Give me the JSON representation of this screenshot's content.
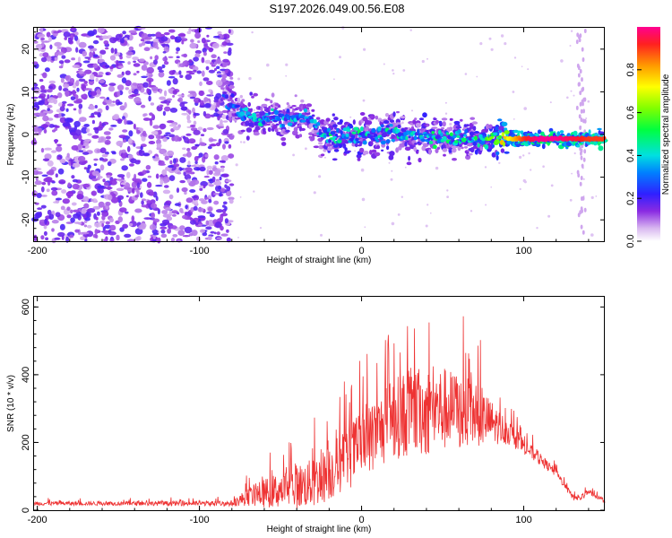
{
  "title": "S197.2026.049.00.56.E08",
  "chart_data": [
    {
      "type": "heatmap",
      "xlabel": "Height of straight line (km)",
      "ylabel": "Frequency (Hz)",
      "xlim": [
        -202,
        150
      ],
      "ylim": [
        -25,
        25
      ],
      "xticks": [
        -200,
        -100,
        0,
        100
      ],
      "yticks": [
        -20,
        -10,
        0,
        10,
        20
      ],
      "colorbar": {
        "label": "Normalized spectral amplitude",
        "range": [
          0,
          1
        ],
        "ticks": [
          "0.0",
          "0.2",
          "0.4",
          "0.6",
          "0.8"
        ],
        "tick_values": [
          0,
          0.2,
          0.4,
          0.6,
          0.8
        ]
      },
      "ridge": {
        "description": "Frequency of the dominant spectral ridge vs height (data units)",
        "x": [
          -85,
          -75,
          -65,
          -55,
          -45,
          -35,
          -30,
          -25,
          -20,
          -10,
          0,
          10,
          20,
          30,
          40,
          50,
          60,
          70,
          80,
          90,
          100,
          110,
          120,
          130,
          140,
          150
        ],
        "freq": [
          9,
          5,
          4,
          4,
          3.5,
          4,
          3,
          0,
          -1,
          0,
          0,
          0,
          0.5,
          -0.5,
          -1,
          -1,
          -1,
          -1,
          -1,
          -1,
          -1,
          -1,
          -1,
          -1,
          -1,
          -1
        ],
        "amplitude": [
          0.25,
          0.3,
          0.35,
          0.35,
          0.35,
          0.3,
          0.3,
          0.35,
          0.4,
          0.4,
          0.4,
          0.35,
          0.4,
          0.35,
          0.4,
          0.4,
          0.4,
          0.4,
          0.5,
          0.7,
          0.9,
          1.0,
          1.0,
          0.95,
          0.9,
          0.9
        ]
      },
      "noise_region": {
        "x_range": [
          -202,
          -80
        ],
        "freq_range": [
          -25,
          25
        ],
        "amplitude": 0.12
      },
      "spike_band": {
        "x": [
          133,
          138
        ],
        "freq_range": [
          -25,
          25
        ]
      }
    },
    {
      "type": "line",
      "xlabel": "Height of straight line (km)",
      "ylabel": "SNR (10 * v/v)",
      "xlim": [
        -202,
        150
      ],
      "ylim": [
        0,
        630
      ],
      "xticks": [
        -200,
        -100,
        0,
        100
      ],
      "yticks": [
        0,
        200,
        400,
        600
      ],
      "color": "#ee3333",
      "envelope": {
        "x": [
          -202,
          -150,
          -100,
          -80,
          -70,
          -60,
          -50,
          -40,
          -30,
          -20,
          -10,
          0,
          10,
          20,
          30,
          40,
          50,
          60,
          70,
          80,
          90,
          100,
          110,
          120,
          130,
          135,
          140,
          145,
          150
        ],
        "base": [
          20,
          20,
          20,
          20,
          40,
          50,
          60,
          70,
          80,
          110,
          150,
          190,
          230,
          270,
          290,
          290,
          300,
          290,
          280,
          260,
          230,
          190,
          150,
          110,
          40,
          35,
          55,
          40,
          25
        ],
        "amp": [
          10,
          10,
          12,
          14,
          45,
          70,
          90,
          110,
          120,
          140,
          160,
          170,
          180,
          200,
          220,
          220,
          210,
          190,
          160,
          110,
          60,
          40,
          30,
          20,
          15,
          15,
          12,
          10,
          10
        ]
      }
    }
  ]
}
